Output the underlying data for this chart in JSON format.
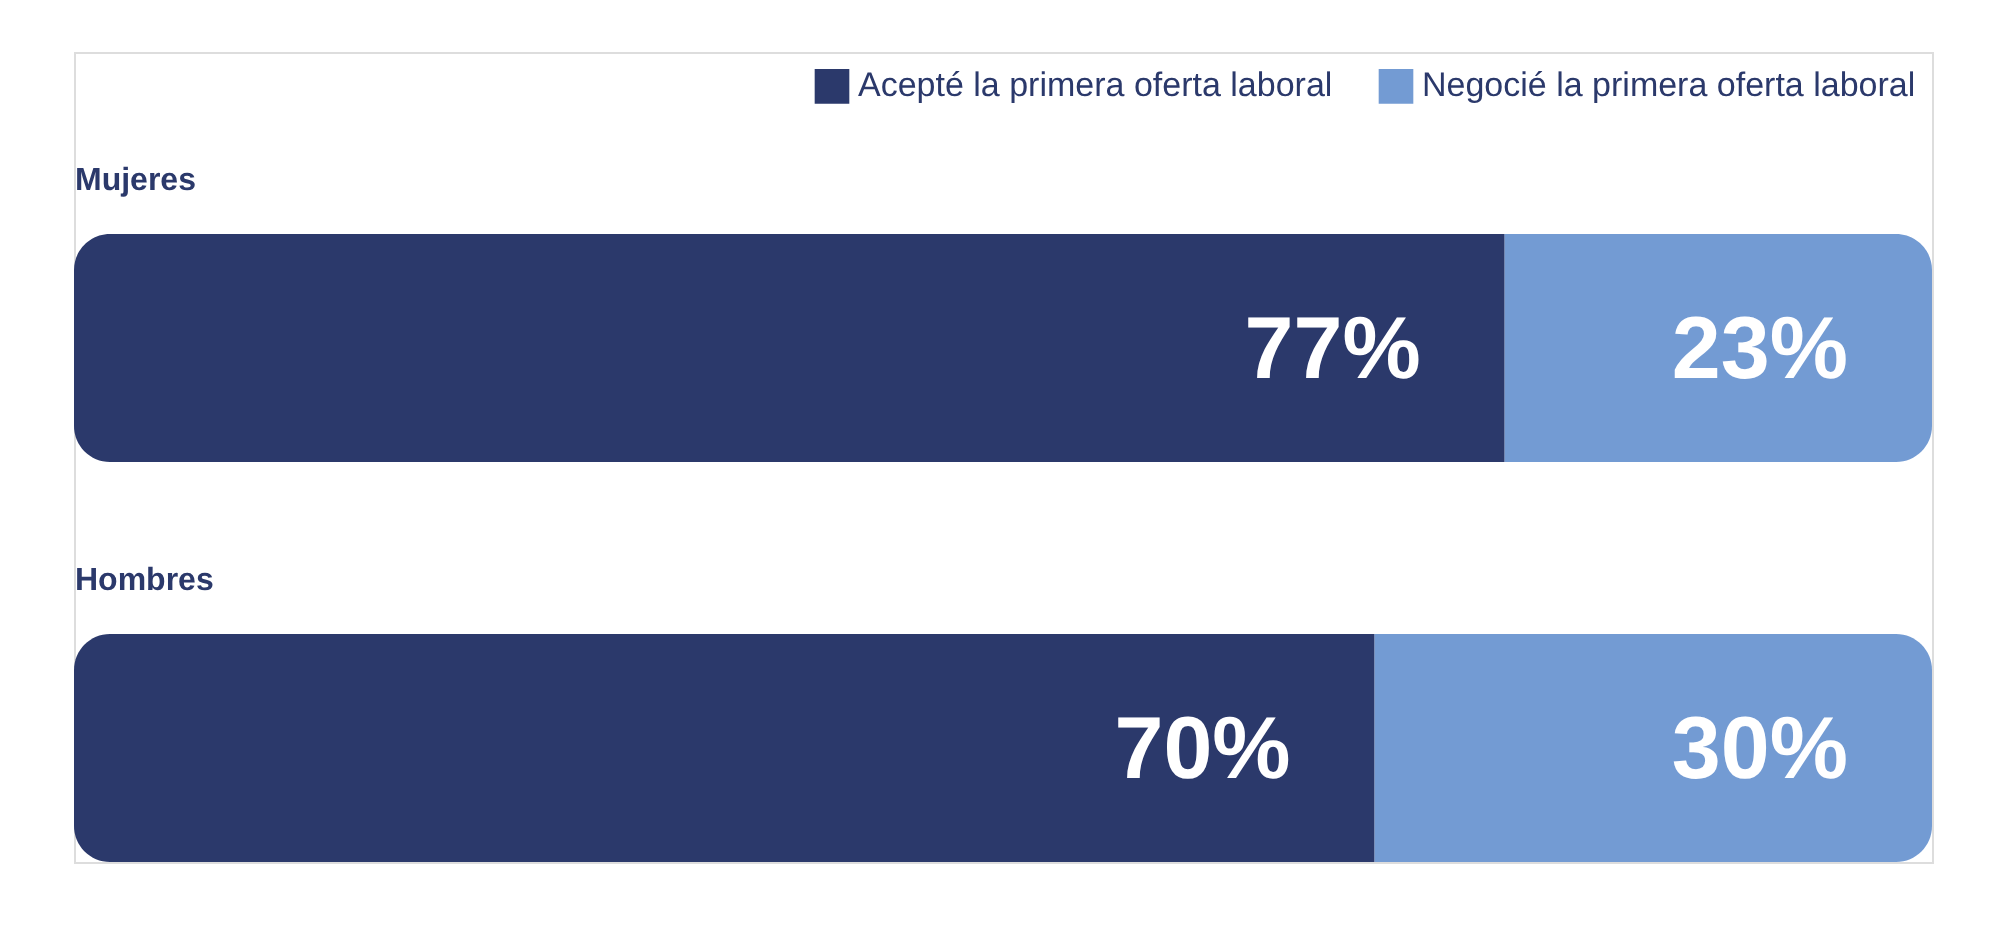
{
  "chart_data": {
    "type": "bar",
    "orientation": "horizontal",
    "stacked": true,
    "categories": [
      "Mujeres",
      "Hombres"
    ],
    "series": [
      {
        "name": "Acepté la primera oferta laboral",
        "color": "#2b396b",
        "values": [
          77,
          70
        ],
        "value_labels": [
          "77%",
          "70%"
        ]
      },
      {
        "name": "Negocié la primera oferta laboral",
        "color": "#739bd3",
        "values": [
          23,
          30
        ],
        "value_labels": [
          "23%",
          "30%"
        ]
      }
    ],
    "xlim": [
      0,
      100
    ],
    "legend": "top right",
    "tick_labels": "y"
  }
}
